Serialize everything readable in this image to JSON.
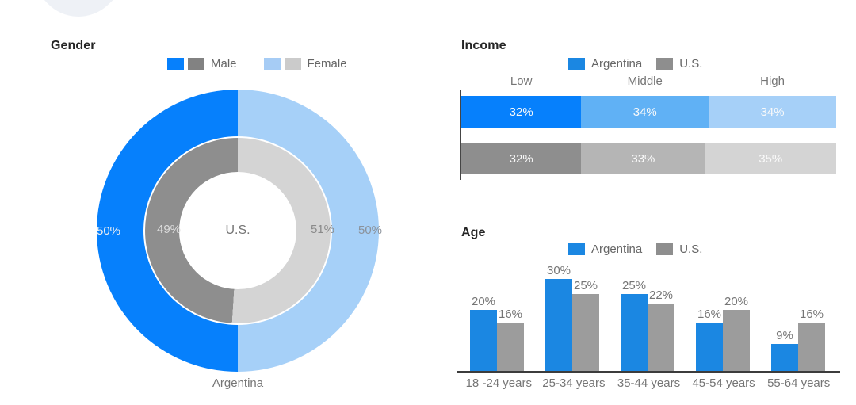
{
  "page": {
    "background": "#ffffff"
  },
  "colors": {
    "corner_blob": "#eef1f6",
    "title_text": "#252525",
    "muted_text": "#757575",
    "legend_text": "#666666",
    "axis_line_income": "#454545",
    "axis_line_age": "#3c3c3c",
    "white_bar_label": "#fafafa",
    "argentina": {
      "strong": "#0680fc",
      "mid": "#60b1f5",
      "light": "#a6d0f8",
      "bar": "#1b87e2"
    },
    "us": {
      "strong": "#8e8e8e",
      "mid": "#b5b5b5",
      "light": "#d4d4d4",
      "bar": "#9c9c9c",
      "swatch": "#828282",
      "swatch_light": "#cbcbcb"
    },
    "gender_female_swatch": "#a6ccf5"
  },
  "gender": {
    "value_labels": {
      "outer_left": "50",
      "inner_left": "49",
      "inner_right": "51",
      "outer_right": "50"
    }
  },
  "chart_data": [
    {
      "type": "pie",
      "subtype": "double-donut",
      "title": "Gender",
      "legend": [
        "Male",
        "Female"
      ],
      "legend_position": "top",
      "rings": [
        {
          "name": "Argentina",
          "position": "outer",
          "slices": [
            {
              "label": "Male",
              "value": 50
            },
            {
              "label": "Female",
              "value": 50
            }
          ]
        },
        {
          "name": "U.S.",
          "position": "inner",
          "slices": [
            {
              "label": "Male",
              "value": 49
            },
            {
              "label": "Female",
              "value": 51
            }
          ]
        }
      ],
      "center_label": "U.S.",
      "bottom_label": "Argentina"
    },
    {
      "type": "bar",
      "subtype": "stacked-horizontal",
      "title": "Income",
      "categories": [
        "Low",
        "Middle",
        "High"
      ],
      "series": [
        {
          "name": "Argentina",
          "values": [
            32,
            34,
            34
          ]
        },
        {
          "name": "U.S.",
          "values": [
            32,
            33,
            35
          ]
        }
      ],
      "xlim": [
        0,
        100
      ],
      "legend_position": "top",
      "value_suffix": "%"
    },
    {
      "type": "bar",
      "subtype": "grouped-vertical",
      "title": "Age",
      "categories": [
        "18 -24 years",
        "25-34 years",
        "35-44 years",
        "45-54 years",
        "55-64 years"
      ],
      "series": [
        {
          "name": "Argentina",
          "values": [
            20,
            30,
            25,
            16,
            9
          ]
        },
        {
          "name": "U.S.",
          "values": [
            16,
            25,
            22,
            20,
            16
          ]
        }
      ],
      "ylim": [
        0,
        32
      ],
      "legend_position": "top",
      "value_suffix": "%"
    }
  ]
}
